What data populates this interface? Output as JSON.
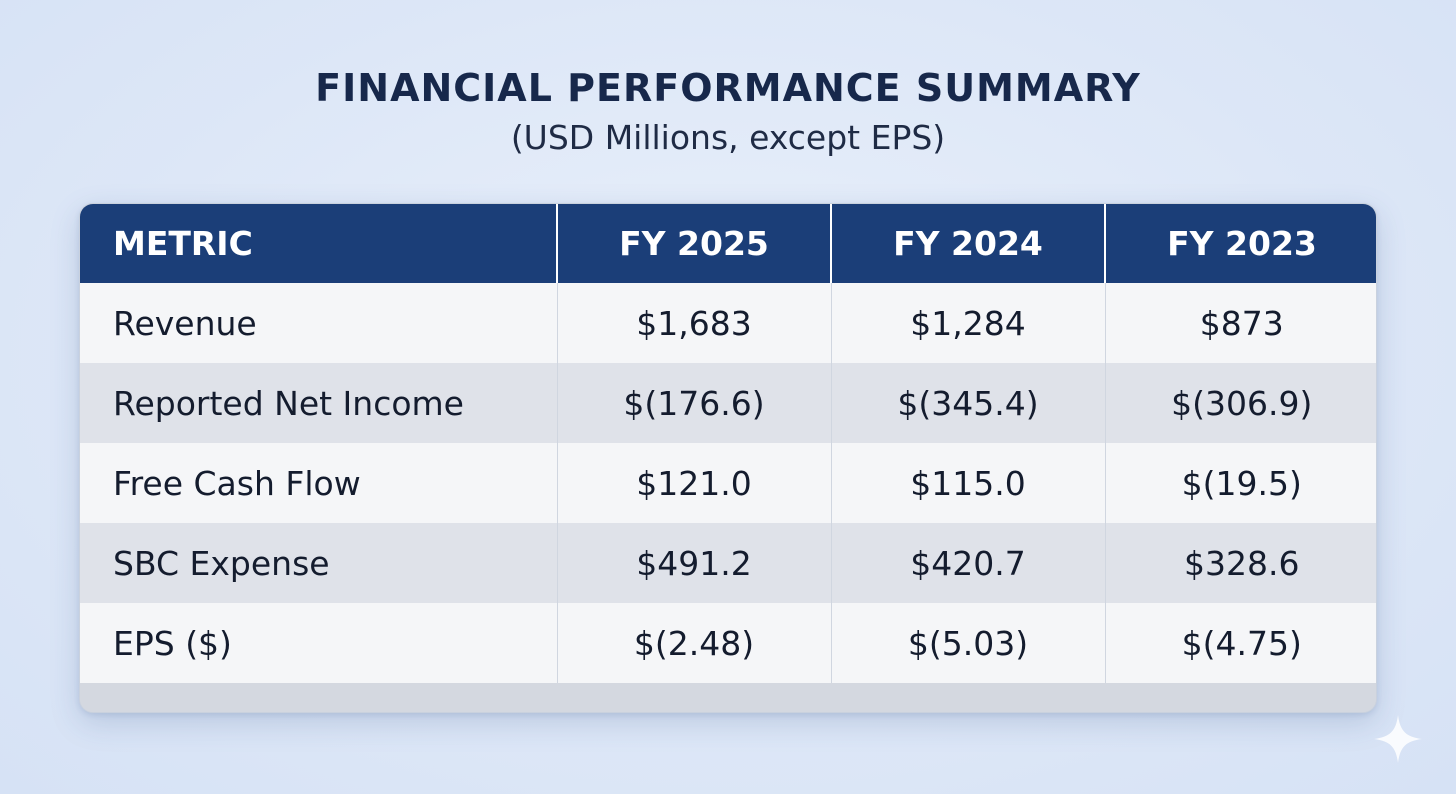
{
  "chart_data": {
    "type": "table",
    "title": "FINANCIAL PERFORMANCE SUMMARY",
    "subtitle": "(USD Millions, except EPS)",
    "columns": [
      "METRIC",
      "FY 2025",
      "FY 2024",
      "FY 2023"
    ],
    "rows": [
      {
        "metric": "Revenue",
        "values": [
          "$1,683",
          "$1,284",
          "$873"
        ]
      },
      {
        "metric": "Reported Net Income",
        "values": [
          "$(176.6)",
          "$(345.4)",
          "$(306.9)"
        ]
      },
      {
        "metric": "Free Cash Flow",
        "values": [
          "$121.0",
          "$115.0",
          "$(19.5)"
        ]
      },
      {
        "metric": "SBC Expense",
        "values": [
          "$491.2",
          "$420.7",
          "$328.6"
        ]
      },
      {
        "metric": "EPS ($)",
        "values": [
          "$(2.48)",
          "$(5.03)",
          "$(4.75)"
        ]
      }
    ]
  },
  "colors": {
    "header_bg": "#1b3e78",
    "title_text": "#17284b",
    "row_light": "#f5f6f8",
    "row_dark": "#dfe2e9"
  },
  "icons": {
    "corner": "sparkle-icon"
  }
}
